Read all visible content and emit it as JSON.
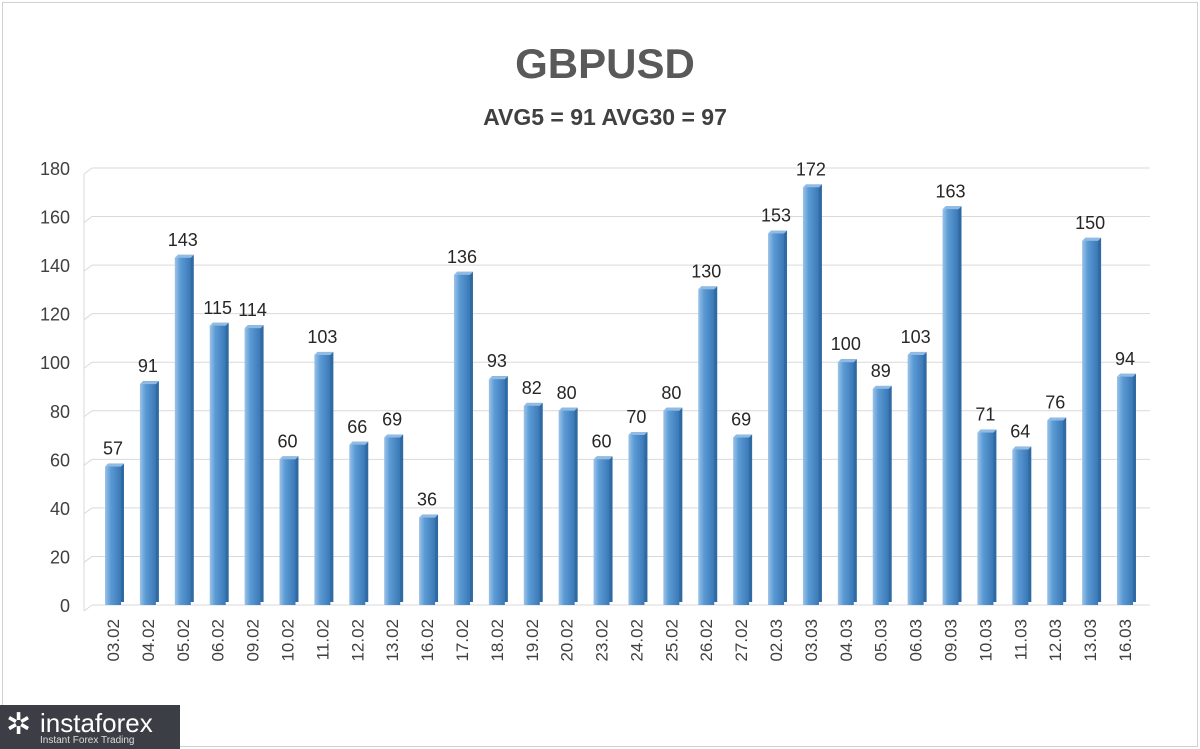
{
  "chart_data": {
    "type": "bar",
    "title": "GBPUSD",
    "subtitle": "AVG5 = 91 AVG30 = 97",
    "xlabel": "",
    "ylabel": "",
    "ylim": [
      0,
      180
    ],
    "yticks": [
      0,
      20,
      40,
      60,
      80,
      100,
      120,
      140,
      160,
      180
    ],
    "grid": true,
    "bar_color": "#5b9bd5",
    "categories": [
      "03.02",
      "04.02",
      "05.02",
      "06.02",
      "09.02",
      "10.02",
      "11.02",
      "12.02",
      "13.02",
      "16.02",
      "17.02",
      "18.02",
      "19.02",
      "20.02",
      "23.02",
      "24.02",
      "25.02",
      "26.02",
      "27.02",
      "02.03",
      "03.03",
      "04.03",
      "05.03",
      "06.03",
      "09.03",
      "10.03",
      "11.03",
      "12.03",
      "13.03",
      "16.03"
    ],
    "values": [
      57,
      91,
      143,
      115,
      114,
      60,
      103,
      66,
      69,
      36,
      136,
      93,
      82,
      80,
      60,
      70,
      80,
      130,
      69,
      153,
      172,
      100,
      89,
      103,
      163,
      71,
      64,
      76,
      150,
      94
    ]
  },
  "watermark": {
    "name": "instaforex",
    "tagline": "Instant Forex Trading"
  }
}
